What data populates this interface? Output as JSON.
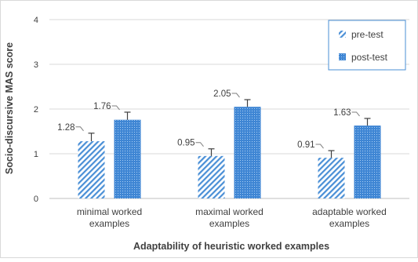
{
  "chart_data": {
    "type": "bar",
    "title": "",
    "xlabel": "Adaptability of heuristic worked examples",
    "ylabel": "Socio-discursive MAS score",
    "ylim": [
      0,
      4
    ],
    "yticks": [
      "0",
      "1",
      "2",
      "3",
      "4"
    ],
    "categories": [
      [
        "minimal worked",
        "examples"
      ],
      [
        "maximal worked",
        "examples"
      ],
      [
        "adaptable worked",
        "examples"
      ]
    ],
    "series": [
      {
        "name": "pre-test",
        "values": [
          1.28,
          0.95,
          0.91
        ],
        "labels": [
          "1.28",
          "0.95",
          "0.91"
        ],
        "error": [
          0.18,
          0.16,
          0.16
        ],
        "pattern": "diagonal-stripes",
        "color": "#4a8fd6"
      },
      {
        "name": "post-test",
        "values": [
          1.76,
          2.05,
          1.63
        ],
        "labels": [
          "1.76",
          "2.05",
          "1.63"
        ],
        "error": [
          0.17,
          0.16,
          0.16
        ],
        "pattern": "dotted",
        "color": "#4a8fd6"
      }
    ],
    "grid": true,
    "legend_position": "top-right"
  }
}
